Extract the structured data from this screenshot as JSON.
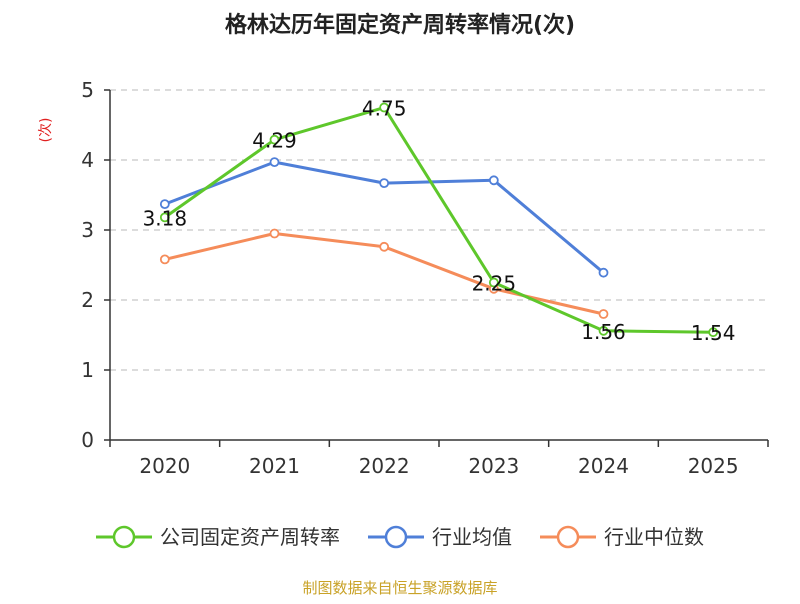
{
  "colors": {
    "company": "#5ec72b",
    "industry_avg": "#4f7fd8",
    "industry_median": "#f58c5a",
    "grid": "#c8c8c8",
    "axis": "#333333",
    "ylabel": "#e02020",
    "source": "#c9a227"
  },
  "chart_data": {
    "type": "line",
    "title": "格林达历年固定资产周转率情况(次)",
    "ylabel": "(次)",
    "xlabel": "",
    "categories": [
      "2020",
      "2021",
      "2022",
      "2023",
      "2024",
      "2025"
    ],
    "ylim": [
      0,
      5
    ],
    "yticks": [
      "0",
      "1",
      "2",
      "3",
      "4",
      "5"
    ],
    "grid": true,
    "legend_position": "bottom",
    "series": [
      {
        "key": "company",
        "name": "公司固定资产周转率",
        "values": [
          3.18,
          4.29,
          4.75,
          2.25,
          1.56,
          1.54
        ],
        "labels": [
          "3.18",
          "4.29",
          "4.75",
          "2.25",
          "1.56",
          "1.54"
        ]
      },
      {
        "key": "industry_avg",
        "name": "行业均值",
        "values": [
          3.37,
          3.97,
          3.67,
          3.71,
          2.39,
          null
        ],
        "labels": []
      },
      {
        "key": "industry_median",
        "name": "行业中位数",
        "values": [
          2.58,
          2.95,
          2.76,
          2.16,
          1.8,
          null
        ],
        "labels": []
      }
    ],
    "source": "制图数据来自恒生聚源数据库"
  }
}
